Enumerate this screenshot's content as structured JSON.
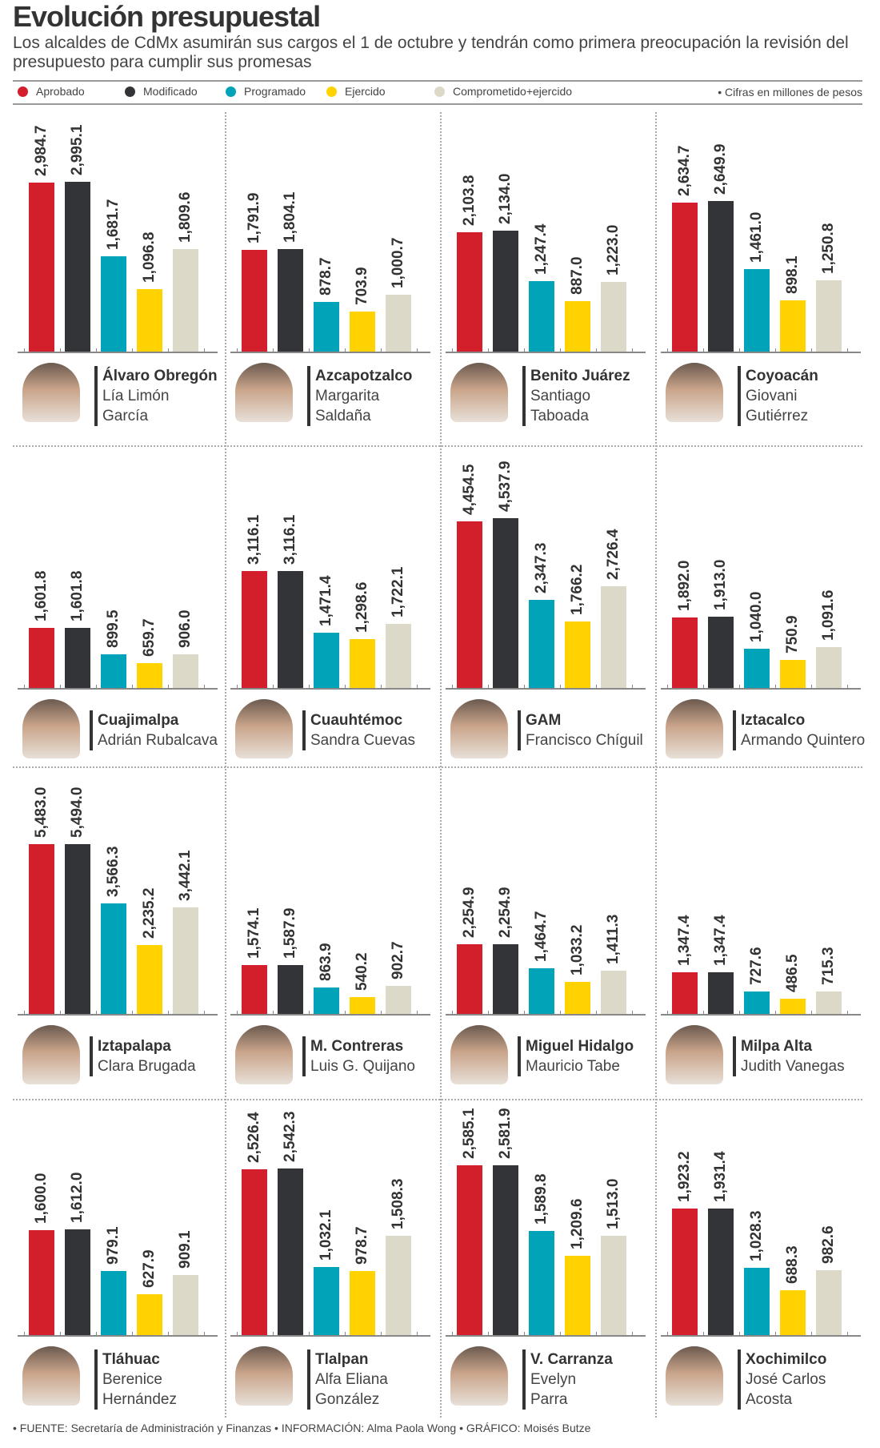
{
  "title": "Evolución presupuestal",
  "subtitle": "Los alcaldes de CdMx asumirán sus cargos el 1 de octubre y tendrán como primera preocupación la revisión del presupuesto para cumplir sus promesas",
  "note": "• Cifras en millones de pesos",
  "footer": "• FUENTE: Secretaría de Administración y Finanzas • INFORMACIÓN: Alma Paola Wong • GRÁFICO: Moisés Butze",
  "colors": {
    "Aprobado": "#d21f2b",
    "Modificado": "#333438",
    "Programado": "#00a3b8",
    "Ejercido": "#ffd200",
    "Comprometido+ejercido": "#ddd9c8"
  },
  "chart_data": {
    "type": "bar",
    "title": "Evolución presupuestal",
    "ylabel": "Millones de pesos",
    "legend_position": "top",
    "series_names": [
      "Aprobado",
      "Modificado",
      "Programado",
      "Ejercido",
      "Comprometido+ejercido"
    ],
    "panels": [
      {
        "alcaldia": "Álvaro Obregón",
        "person": [
          "Lía Limón",
          "García"
        ],
        "values": [
          2984.7,
          2995.1,
          1681.7,
          1096.8,
          1809.6
        ],
        "labels": [
          "2,984.7",
          "2,995.1",
          "1,681.7",
          "1,096.8",
          "1,809.6"
        ]
      },
      {
        "alcaldia": "Azcapotzalco",
        "person": [
          "Margarita",
          "Saldaña"
        ],
        "values": [
          1791.9,
          1804.1,
          878.7,
          703.9,
          1000.7
        ],
        "labels": [
          "1,791.9",
          "1,804.1",
          "878.7",
          "703.9",
          "1,000.7"
        ]
      },
      {
        "alcaldia": "Benito Juárez",
        "person": [
          "Santiago",
          "Taboada"
        ],
        "values": [
          2103.8,
          2134.0,
          1247.4,
          887.0,
          1223.0
        ],
        "labels": [
          "2,103.8",
          "2,134.0",
          "1,247.4",
          "887.0",
          "1,223.0"
        ]
      },
      {
        "alcaldia": "Coyoacán",
        "person": [
          "Giovani",
          "Gutiérrez"
        ],
        "values": [
          2634.7,
          2649.9,
          1461.0,
          898.1,
          1250.8
        ],
        "labels": [
          "2,634.7",
          "2,649.9",
          "1,461.0",
          "898.1",
          "1,250.8"
        ]
      },
      {
        "alcaldia": "Cuajimalpa",
        "person": [
          "Adrián Rubalcava"
        ],
        "values": [
          1601.8,
          1601.8,
          899.5,
          659.7,
          906.0
        ],
        "labels": [
          "1,601.8",
          "1,601.8",
          "899.5",
          "659.7",
          "906.0"
        ]
      },
      {
        "alcaldia": "Cuauhtémoc",
        "person": [
          "Sandra Cuevas"
        ],
        "values": [
          3116.1,
          3116.1,
          1471.4,
          1298.6,
          1722.1
        ],
        "labels": [
          "3,116.1",
          "3,116.1",
          "1,471.4",
          "1,298.6",
          "1,722.1"
        ]
      },
      {
        "alcaldia": "GAM",
        "person": [
          "Francisco Chíguil"
        ],
        "values": [
          4454.5,
          4537.9,
          2347.3,
          1766.2,
          2726.4
        ],
        "labels": [
          "4,454.5",
          "4,537.9",
          "2,347.3",
          "1,766.2",
          "2,726.4"
        ]
      },
      {
        "alcaldia": "Iztacalco",
        "person": [
          "Armando Quintero"
        ],
        "values": [
          1892.0,
          1913.0,
          1040.0,
          750.9,
          1091.6
        ],
        "labels": [
          "1,892.0",
          "1,913.0",
          "1,040.0",
          "750.9",
          "1,091.6"
        ]
      },
      {
        "alcaldia": "Iztapalapa",
        "person": [
          "Clara Brugada"
        ],
        "values": [
          5483.0,
          5494.0,
          3566.3,
          2235.2,
          3442.1
        ],
        "labels": [
          "5,483.0",
          "5,494.0",
          "3,566.3",
          "2,235.2",
          "3,442.1"
        ]
      },
      {
        "alcaldia": "M. Contreras",
        "person": [
          "Luis G. Quijano"
        ],
        "values": [
          1574.1,
          1587.9,
          863.9,
          540.2,
          902.7
        ],
        "labels": [
          "1,574.1",
          "1,587.9",
          "863.9",
          "540.2",
          "902.7"
        ]
      },
      {
        "alcaldia": "Miguel Hidalgo",
        "person": [
          "Mauricio Tabe"
        ],
        "values": [
          2254.9,
          2254.9,
          1464.7,
          1033.2,
          1411.3
        ],
        "labels": [
          "2,254.9",
          "2,254.9",
          "1,464.7",
          "1,033.2",
          "1,411.3"
        ]
      },
      {
        "alcaldia": "Milpa Alta",
        "person": [
          "Judith Vanegas"
        ],
        "values": [
          1347.4,
          1347.4,
          727.6,
          486.5,
          715.3
        ],
        "labels": [
          "1,347.4",
          "1,347.4",
          "727.6",
          "486.5",
          "715.3"
        ]
      },
      {
        "alcaldia": "Tláhuac",
        "person": [
          "Berenice",
          "Hernández"
        ],
        "values": [
          1600.0,
          1612.0,
          979.1,
          627.9,
          909.1
        ],
        "labels": [
          "1,600.0",
          "1,612.0",
          "979.1",
          "627.9",
          "909.1"
        ]
      },
      {
        "alcaldia": "Tlalpan",
        "person": [
          "Alfa Eliana",
          "González"
        ],
        "values": [
          2526.4,
          2542.3,
          1032.1,
          978.7,
          1508.3
        ],
        "labels": [
          "2,526.4",
          "2,542.3",
          "1,032.1",
          "978.7",
          "1,508.3"
        ]
      },
      {
        "alcaldia": "V. Carranza",
        "person": [
          "Evelyn",
          "Parra"
        ],
        "values": [
          2585.1,
          2581.9,
          1589.8,
          1209.6,
          1513.0
        ],
        "labels": [
          "2,585.1",
          "2,581.9",
          "1,589.8",
          "1,209.6",
          "1,513.0"
        ]
      },
      {
        "alcaldia": "Xochimilco",
        "person": [
          "José Carlos",
          "Acosta"
        ],
        "values": [
          1923.2,
          1931.4,
          1028.3,
          688.3,
          982.6
        ],
        "labels": [
          "1,923.2",
          "1,931.4",
          "1,028.3",
          "688.3",
          "982.6"
        ]
      }
    ]
  }
}
